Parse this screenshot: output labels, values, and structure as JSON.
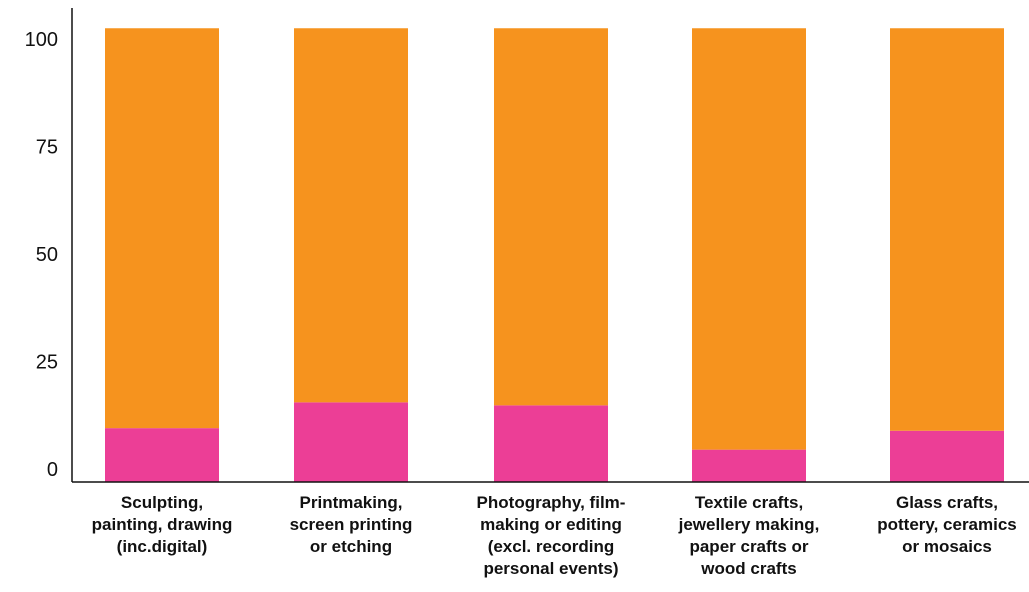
{
  "chart_data": {
    "type": "bar",
    "stacked": true,
    "title": "",
    "xlabel": "",
    "ylabel": "",
    "ylim": [
      0,
      100
    ],
    "yticks": [
      "0",
      "25",
      "50",
      "75",
      "100"
    ],
    "grid": false,
    "legend": "none",
    "categories": [
      [
        "Sculpting,",
        "painting, drawing",
        "(inc.digital)"
      ],
      [
        "Printmaking,",
        "screen printing",
        "or etching"
      ],
      [
        "Photography, film-",
        "making or editing",
        "(excl. recording",
        "personal events)"
      ],
      [
        "Textile crafts,",
        "jewellery making,",
        "paper crafts or",
        "wood crafts"
      ],
      [
        "Glass crafts,",
        "pottery, ceramics",
        "or mosaics"
      ]
    ],
    "series": [
      {
        "values": [
          9.5,
          15.5,
          14.8,
          4.5,
          8.9
        ],
        "color": "#ec3e96"
      },
      {
        "values": [
          93.0,
          87.0,
          87.7,
          98.0,
          93.6
        ],
        "color": "#f6931e"
      }
    ]
  }
}
